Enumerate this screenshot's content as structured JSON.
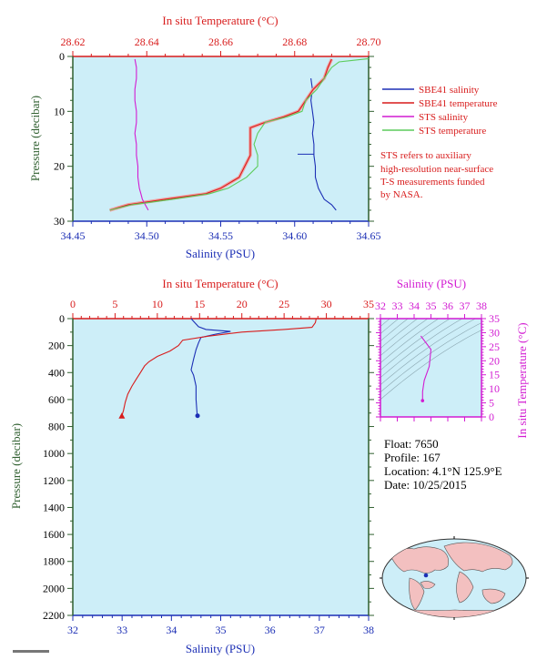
{
  "top_panel": {
    "top_axis_title": "In situ Temperature (°C)",
    "bottom_axis_title": "Salinity (PSU)",
    "left_axis_title": "Pressure (decibar)",
    "legend": [
      {
        "label": "SBE41 salinity",
        "color": "#1c2fb5"
      },
      {
        "label": "SBE41 temperature",
        "color": "#d81c1c"
      },
      {
        "label": "STS salinity",
        "color": "#d21cd2"
      },
      {
        "label": "STS temperature",
        "color": "#5ccc5c"
      }
    ],
    "note": [
      "STS refers to auxiliary",
      "high-resolution near-surface",
      "T-S measurements funded",
      "by NASA."
    ]
  },
  "bottom_panel": {
    "top_axis_title": "In situ Temperature (°C)",
    "bottom_axis_title": "Salinity (PSU)",
    "left_axis_title": "Pressure (decibar)"
  },
  "ts_inset": {
    "top_axis_title": "Salinity (PSU)",
    "right_axis_title": "In situ Temperature (°C)"
  },
  "float_info": {
    "float": "Float:  7650",
    "profile": "Profile:  167",
    "location": "Location:  4.1°N  125.9°E",
    "date": "Date:  10/25/2015"
  },
  "colors": {
    "plot_bg": "#cdeef8",
    "salinity_axis": "#1c2fb5",
    "temperature_axis": "#d81c1c",
    "pressure_axis": "#2f5f2f",
    "sts_salinity": "#d21cd2",
    "sts_temperature": "#5ccc5c",
    "temp_light": "#f0a0a0"
  },
  "chart_data": [
    {
      "type": "line",
      "title": "",
      "x_top": {
        "label": "In situ Temperature (°C)",
        "range": [
          28.62,
          28.7
        ],
        "ticks": [
          "28.62",
          "28.64",
          "28.66",
          "28.68",
          "28.70"
        ]
      },
      "x_bottom": {
        "label": "Salinity (PSU)",
        "range": [
          34.45,
          34.65
        ],
        "ticks": [
          "34.45",
          "34.50",
          "34.55",
          "34.60",
          "34.65"
        ]
      },
      "y": {
        "label": "Pressure (decibar)",
        "range": [
          0,
          30
        ],
        "inverted": true,
        "ticks": [
          "0",
          "10",
          "20",
          "30"
        ]
      },
      "series": [
        {
          "name": "SBE41 salinity",
          "axis": "salinity",
          "color": "#1c2fb5",
          "points": [
            [
              34.611,
              4
            ],
            [
              34.612,
              6
            ],
            [
              34.611,
              8
            ],
            [
              34.612,
              10
            ],
            [
              34.613,
              12
            ],
            [
              34.612,
              14
            ],
            [
              34.613,
              16
            ],
            [
              34.613,
              18
            ],
            [
              34.614,
              20
            ],
            [
              34.614,
              22
            ],
            [
              34.616,
              24
            ],
            [
              34.62,
              26
            ],
            [
              34.625,
              27
            ],
            [
              34.628,
              28
            ]
          ]
        },
        {
          "name": "SBE41 temperature",
          "axis": "temperature",
          "color": "#d81c1c",
          "points": [
            [
              28.69,
              0.5
            ],
            [
              28.689,
              2
            ],
            [
              28.688,
              4
            ],
            [
              28.685,
              6
            ],
            [
              28.683,
              8
            ],
            [
              28.681,
              10
            ],
            [
              28.677,
              11
            ],
            [
              28.672,
              12
            ],
            [
              28.668,
              13
            ],
            [
              28.668,
              16
            ],
            [
              28.668,
              18
            ],
            [
              28.665,
              22
            ],
            [
              28.66,
              24
            ],
            [
              28.656,
              25
            ],
            [
              28.645,
              26
            ],
            [
              28.635,
              27
            ],
            [
              28.63,
              28
            ]
          ]
        },
        {
          "name": "STS salinity",
          "axis": "salinity",
          "color": "#d21cd2",
          "points": [
            [
              34.492,
              0.5
            ],
            [
              34.493,
              2
            ],
            [
              34.493,
              4
            ],
            [
              34.492,
              6
            ],
            [
              34.492,
              8
            ],
            [
              34.493,
              10
            ],
            [
              34.493,
              12
            ],
            [
              34.492,
              14
            ],
            [
              34.493,
              16
            ],
            [
              34.493,
              18
            ],
            [
              34.494,
              20
            ],
            [
              34.494,
              22
            ],
            [
              34.495,
              24
            ],
            [
              34.496,
              25
            ],
            [
              34.497,
              26
            ],
            [
              34.499,
              27
            ],
            [
              34.501,
              28
            ]
          ]
        },
        {
          "name": "STS temperature",
          "axis": "temperature",
          "color": "#5ccc5c",
          "points": [
            [
              28.7,
              0.4
            ],
            [
              28.692,
              1
            ],
            [
              28.69,
              2
            ],
            [
              28.688,
              4
            ],
            [
              28.686,
              6
            ],
            [
              28.683,
              8
            ],
            [
              28.682,
              10
            ],
            [
              28.678,
              11
            ],
            [
              28.672,
              12
            ],
            [
              28.67,
              14
            ],
            [
              28.669,
              16
            ],
            [
              28.67,
              18
            ],
            [
              28.67,
              20
            ],
            [
              28.667,
              22
            ],
            [
              28.662,
              24
            ],
            [
              28.657,
              25
            ],
            [
              28.647,
              26
            ],
            [
              28.636,
              27
            ],
            [
              28.63,
              28
            ]
          ]
        }
      ]
    },
    {
      "type": "line",
      "title": "",
      "x_top": {
        "label": "In situ Temperature (°C)",
        "range": [
          0,
          35
        ],
        "ticks": [
          "0",
          "5",
          "10",
          "15",
          "20",
          "25",
          "30",
          "35"
        ]
      },
      "x_bottom": {
        "label": "Salinity (PSU)",
        "range": [
          32,
          38
        ],
        "ticks": [
          "32",
          "33",
          "34",
          "35",
          "36",
          "37",
          "38"
        ]
      },
      "y": {
        "label": "Pressure (decibar)",
        "range": [
          0,
          2200
        ],
        "inverted": true,
        "ticks": [
          "0",
          "200",
          "400",
          "600",
          "800",
          "1000",
          "1200",
          "1400",
          "1600",
          "1800",
          "2000",
          "2200"
        ]
      },
      "series": [
        {
          "axis": "salinity",
          "color": "#1c2fb5",
          "points": [
            [
              34.4,
              0
            ],
            [
              34.45,
              20
            ],
            [
              34.55,
              60
            ],
            [
              34.7,
              80
            ],
            [
              35.2,
              95
            ],
            [
              34.9,
              115
            ],
            [
              34.6,
              140
            ],
            [
              34.55,
              180
            ],
            [
              34.5,
              230
            ],
            [
              34.45,
              300
            ],
            [
              34.4,
              380
            ],
            [
              34.45,
              420
            ],
            [
              34.5,
              500
            ],
            [
              34.5,
              600
            ],
            [
              34.52,
              700
            ],
            [
              34.53,
              720
            ]
          ]
        },
        {
          "axis": "temperature",
          "color": "#d81c1c",
          "points": [
            [
              28.8,
              0
            ],
            [
              28.7,
              30
            ],
            [
              28.3,
              65
            ],
            [
              25.0,
              80
            ],
            [
              20.0,
              100
            ],
            [
              16.0,
              130
            ],
            [
              13.0,
              160
            ],
            [
              12.5,
              200
            ],
            [
              11.5,
              240
            ],
            [
              10.0,
              280
            ],
            [
              9.0,
              320
            ],
            [
              8.5,
              350
            ],
            [
              8.0,
              400
            ],
            [
              7.5,
              450
            ],
            [
              7.0,
              500
            ],
            [
              6.5,
              560
            ],
            [
              6.2,
              620
            ],
            [
              6.0,
              680
            ],
            [
              5.8,
              720
            ]
          ]
        }
      ]
    },
    {
      "type": "line",
      "title": "",
      "x": {
        "label": "Salinity (PSU)",
        "range": [
          32,
          38
        ],
        "ticks": [
          "32",
          "33",
          "34",
          "35",
          "36",
          "37",
          "38"
        ]
      },
      "y": {
        "label": "In situ Temperature (°C)",
        "range": [
          0,
          35
        ],
        "ticks": [
          "0",
          "5",
          "10",
          "15",
          "20",
          "25",
          "30",
          "35"
        ]
      },
      "series": [
        {
          "axis": "ts",
          "color": "#d21cd2",
          "points": [
            [
              34.4,
              28.8
            ],
            [
              35.0,
              24
            ],
            [
              34.9,
              18
            ],
            [
              34.6,
              13
            ],
            [
              34.5,
              9
            ],
            [
              34.5,
              6
            ],
            [
              34.5,
              5.8
            ]
          ]
        }
      ]
    }
  ]
}
